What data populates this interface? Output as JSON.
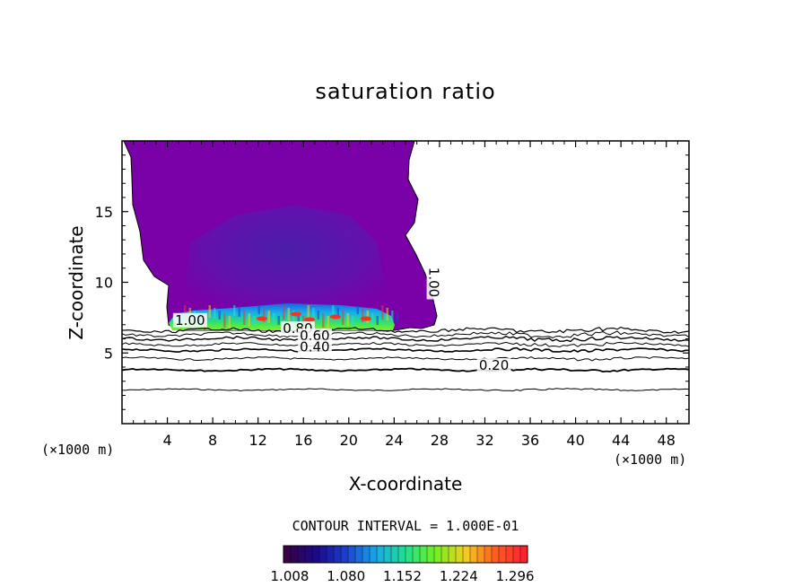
{
  "chart_data": {
    "type": "heatmap",
    "title": "saturation ratio",
    "xlabel": "X-coordinate",
    "ylabel": "Z-coordinate",
    "x_unit_label": "(×1000 m)",
    "xlim": [
      0,
      50
    ],
    "ylim": [
      0,
      20
    ],
    "x_ticks": [
      4,
      8,
      12,
      16,
      20,
      24,
      28,
      32,
      36,
      40,
      44,
      48
    ],
    "y_ticks": [
      5,
      10,
      15
    ],
    "contour_interval_text": "CONTOUR INTERVAL = 1.000E-01",
    "contour_labels": [
      {
        "text": "1.00",
        "x": 6,
        "z": 7.0,
        "rotate": 0
      },
      {
        "text": "1.00",
        "x": 27.1,
        "z": 10.0,
        "rotate": 90
      },
      {
        "text": "0.80",
        "x": 15.5,
        "z": 6.4,
        "rotate": 0
      },
      {
        "text": "0.60",
        "x": 17.0,
        "z": 5.9,
        "rotate": 0
      },
      {
        "text": "0.40",
        "x": 17.0,
        "z": 5.1,
        "rotate": 0
      },
      {
        "text": "0.20",
        "x": 32.8,
        "z": 3.8,
        "rotate": 0
      }
    ],
    "colorbar": {
      "min": 1.008,
      "max": 1.32,
      "tick_labels": [
        "1.008",
        "1.080",
        "1.152",
        "1.224",
        "1.296"
      ],
      "tick_values": [
        1.008,
        1.08,
        1.152,
        1.224,
        1.296
      ],
      "colors": [
        "#3a0048",
        "#1a0a8a",
        "#1d3fd0",
        "#18a8e8",
        "#20e090",
        "#70f020",
        "#f0d020",
        "#ff6020",
        "#ff2030"
      ]
    },
    "region_color": "#7a00a8",
    "grid": false
  }
}
